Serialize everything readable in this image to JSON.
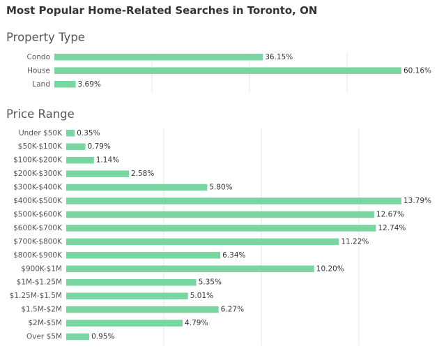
{
  "page": {
    "title": "Most Popular Home-Related Searches in Toronto, ON"
  },
  "colors": {
    "bar": "#79d6a0",
    "gridline": "#e6e6e6"
  },
  "chart_data": [
    {
      "type": "bar",
      "orientation": "horizontal",
      "title": "Property Type",
      "categories": [
        "Condo",
        "House",
        "Land"
      ],
      "values": [
        36.15,
        60.16,
        3.69
      ],
      "value_labels": [
        "36.15%",
        "60.16%",
        "3.69%"
      ],
      "xlim": [
        0,
        60.16
      ],
      "grid": true
    },
    {
      "type": "bar",
      "orientation": "horizontal",
      "title": "Price Range",
      "categories": [
        "Under $50K",
        "$50K-$100K",
        "$100K-$200K",
        "$200K-$300K",
        "$300K-$400K",
        "$400K-$500K",
        "$500K-$600K",
        "$600K-$700K",
        "$700K-$800K",
        "$800K-$900K",
        "$900K-$1M",
        "$1M-$1.25M",
        "$1.25M-$1.5M",
        "$1.5M-$2M",
        "$2M-$5M",
        "Over $5M"
      ],
      "values": [
        0.35,
        0.79,
        1.14,
        2.58,
        5.8,
        13.79,
        12.67,
        12.74,
        11.22,
        6.34,
        10.2,
        5.35,
        5.01,
        6.27,
        4.79,
        0.95
      ],
      "value_labels": [
        "0.35%",
        "0.79%",
        "1.14%",
        "2.58%",
        "5.80%",
        "13.79%",
        "12.67%",
        "12.74%",
        "11.22%",
        "6.34%",
        "10.20%",
        "5.35%",
        "5.01%",
        "6.27%",
        "4.79%",
        "0.95%"
      ],
      "xlim": [
        0,
        13.79
      ],
      "grid": true
    }
  ]
}
